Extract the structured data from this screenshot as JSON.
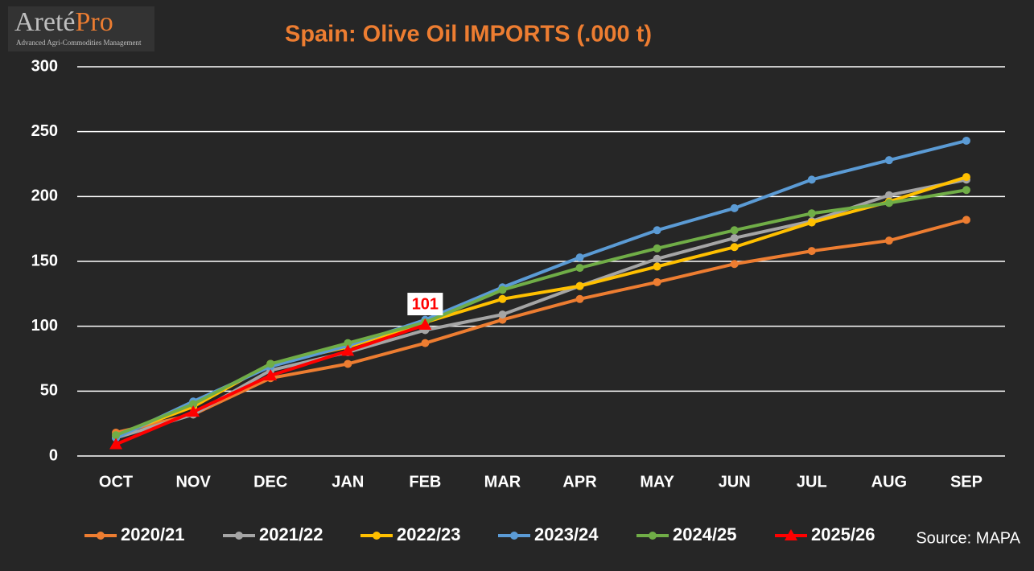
{
  "logo": {
    "name_main": "Areté",
    "name_accent": "Pro",
    "tagline": "Advanced Agri-Commodities Management"
  },
  "chart_data": {
    "type": "line",
    "title": "Spain: Olive Oil IMPORTS (.000 t)",
    "source": "Source: MAPA",
    "categories": [
      "OCT",
      "NOV",
      "DEC",
      "JAN",
      "FEB",
      "MAR",
      "APR",
      "MAY",
      "JUN",
      "JUL",
      "AUG",
      "SEP"
    ],
    "ylim": [
      0,
      300
    ],
    "yticks": [
      0,
      50,
      100,
      150,
      200,
      250,
      300
    ],
    "grid": true,
    "legend": "bottom",
    "series": [
      {
        "name": "2020/21",
        "color": "#ed7d31",
        "marker": "circle",
        "values": [
          18,
          32,
          60,
          71,
          87,
          105,
          121,
          134,
          148,
          158,
          166,
          182
        ]
      },
      {
        "name": "2021/22",
        "color": "#a5a5a5",
        "marker": "circle",
        "values": [
          14,
          32,
          66,
          80,
          97,
          109,
          131,
          152,
          168,
          181,
          201,
          213
        ]
      },
      {
        "name": "2022/23",
        "color": "#ffc000",
        "marker": "circle",
        "values": [
          16,
          38,
          71,
          84,
          103,
          121,
          131,
          146,
          161,
          180,
          196,
          215
        ]
      },
      {
        "name": "2023/24",
        "color": "#5b9bd5",
        "marker": "circle",
        "values": [
          14,
          42,
          69,
          85,
          105,
          130,
          153,
          174,
          191,
          213,
          228,
          243
        ]
      },
      {
        "name": "2024/25",
        "color": "#70ad47",
        "marker": "circle",
        "values": [
          16,
          40,
          71,
          87,
          103,
          128,
          145,
          160,
          174,
          187,
          195,
          205
        ]
      },
      {
        "name": "2025/26",
        "color": "#ff0000",
        "marker": "triangle",
        "values": [
          9,
          34,
          62,
          81,
          101,
          null,
          null,
          null,
          null,
          null,
          null,
          null
        ],
        "labeled_index": 4
      }
    ]
  }
}
